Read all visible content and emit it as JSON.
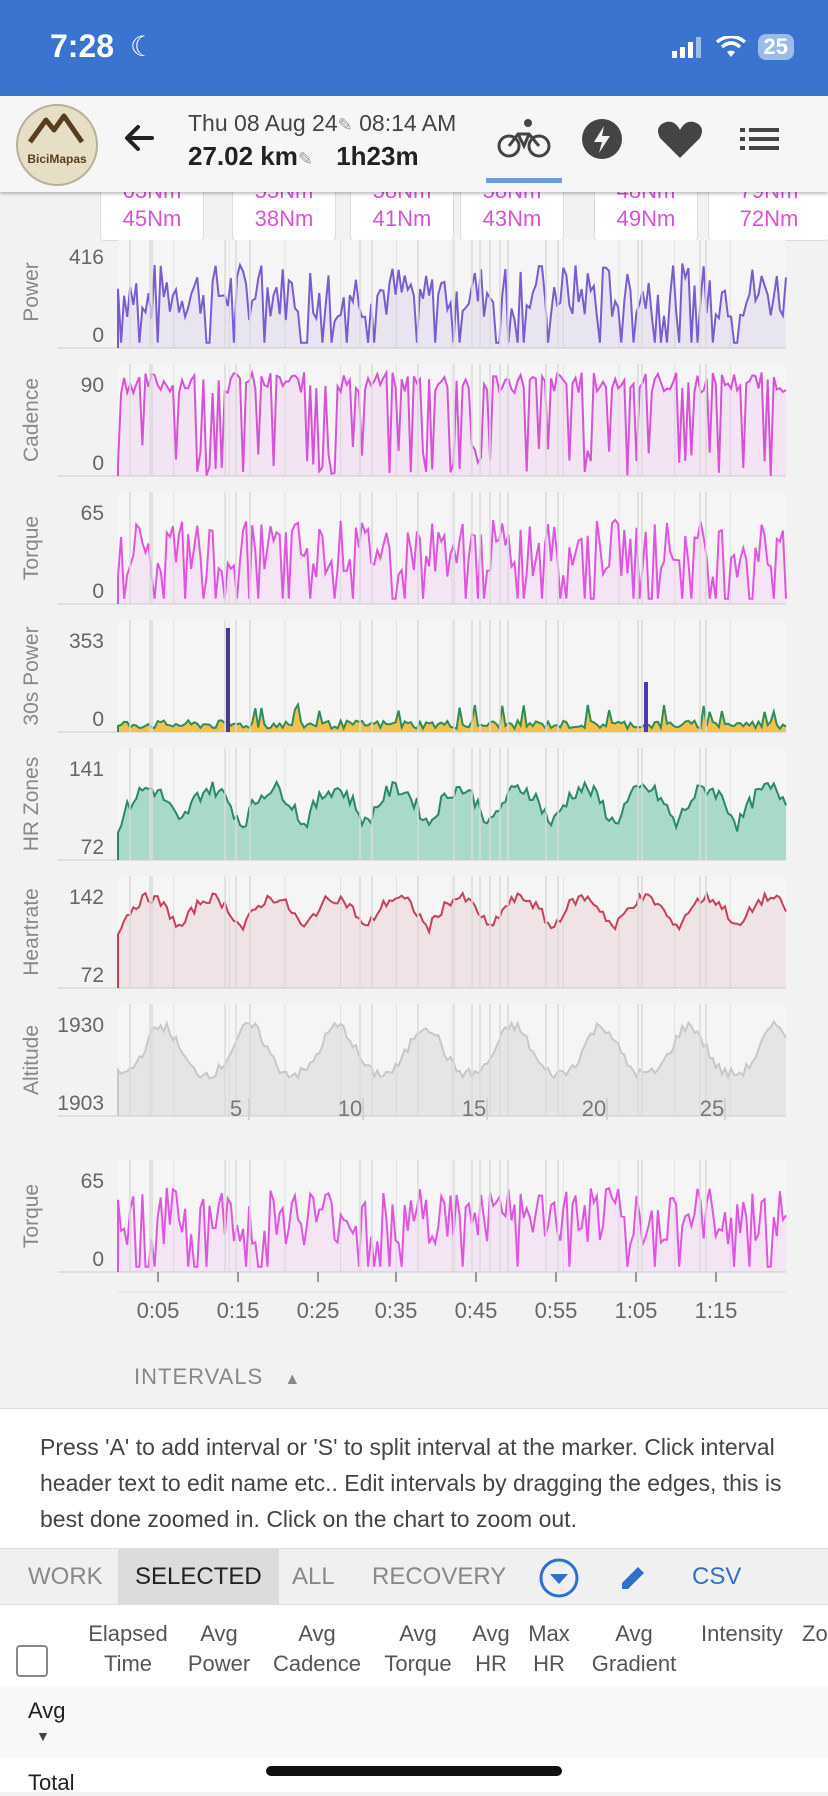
{
  "status": {
    "time": "7:28",
    "battery": "25"
  },
  "header": {
    "logo_text": "BiciMapas",
    "date": "Thu 08 Aug 24",
    "start_time": "08:14 AM",
    "distance": "27.02 km",
    "duration": "1h23m",
    "tabs": [
      {
        "icon": "bicycle-icon",
        "active": true
      },
      {
        "icon": "lightning-icon",
        "active": false
      },
      {
        "icon": "heart-icon",
        "active": false
      },
      {
        "icon": "list-icon",
        "active": false
      }
    ]
  },
  "interval_cards": [
    {
      "value": "45Nm"
    },
    {
      "value": "38Nm"
    },
    {
      "value": "41Nm"
    },
    {
      "value": "43Nm"
    },
    {
      "value": "49Nm"
    },
    {
      "value": "72Nm"
    }
  ],
  "chart_data": [
    {
      "type": "line",
      "ylabel": "Power",
      "ylim": [
        0,
        416
      ],
      "ticks": [
        "416",
        "0"
      ],
      "color": "#7a5bd0"
    },
    {
      "type": "line",
      "ylabel": "Cadence",
      "ylim": [
        0,
        90
      ],
      "ticks": [
        "90",
        "0"
      ],
      "color": "#d653d6"
    },
    {
      "type": "line",
      "ylabel": "Torque",
      "ylim": [
        0,
        65
      ],
      "ticks": [
        "65",
        "0"
      ],
      "color": "#e055e0"
    },
    {
      "type": "area",
      "ylabel": "30s Power",
      "ylim": [
        0,
        353
      ],
      "ticks": [
        "353",
        "0"
      ],
      "color": "#2f8c5a"
    },
    {
      "type": "area",
      "ylabel": "HR Zones",
      "ylim": [
        72,
        141
      ],
      "ticks": [
        "141",
        "72"
      ],
      "color": "#2a8a66"
    },
    {
      "type": "line",
      "ylabel": "Heartrate",
      "ylim": [
        72,
        142
      ],
      "ticks": [
        "142",
        "72"
      ],
      "color": "#c8405a"
    },
    {
      "type": "area",
      "ylabel": "Altitude",
      "ylim": [
        1903,
        1930
      ],
      "ticks": [
        "1930",
        "1903"
      ],
      "color": "#c8c8c8",
      "x_distance_ticks": [
        "5",
        "10",
        "15",
        "20",
        "25"
      ]
    },
    {
      "type": "line",
      "ylabel": "Torque",
      "ylim": [
        0,
        65
      ],
      "ticks": [
        "65",
        "0"
      ],
      "color": "#e055e0",
      "x_time_ticks": [
        "0:05",
        "0:15",
        "0:25",
        "0:35",
        "0:45",
        "0:55",
        "1:05",
        "1:15"
      ]
    }
  ],
  "intervals_label": "INTERVALS",
  "help_text": "Press 'A' to add interval or 'S' to split interval at the marker. Click interval header text to edit name etc.. Edit intervals by dragging the edges, this is best done zoomed in. Click on the chart to zoom out.",
  "filters": {
    "work": "WORK",
    "selected": "SELECTED",
    "all": "ALL",
    "recovery": "RECOVERY",
    "csv": "CSV"
  },
  "table": {
    "headers": [
      {
        "l1": "Elapsed",
        "l2": "Time"
      },
      {
        "l1": "Avg",
        "l2": "Power"
      },
      {
        "l1": "Avg",
        "l2": "Cadence"
      },
      {
        "l1": "Avg",
        "l2": "Torque"
      },
      {
        "l1": "Avg",
        "l2": "HR"
      },
      {
        "l1": "Max",
        "l2": "HR"
      },
      {
        "l1": "Avg",
        "l2": "Gradient"
      },
      {
        "l1": "",
        "l2": "Intensity"
      },
      {
        "l1": "",
        "l2": "Zo"
      }
    ],
    "avg_label": "Avg",
    "total_label": "Total"
  }
}
